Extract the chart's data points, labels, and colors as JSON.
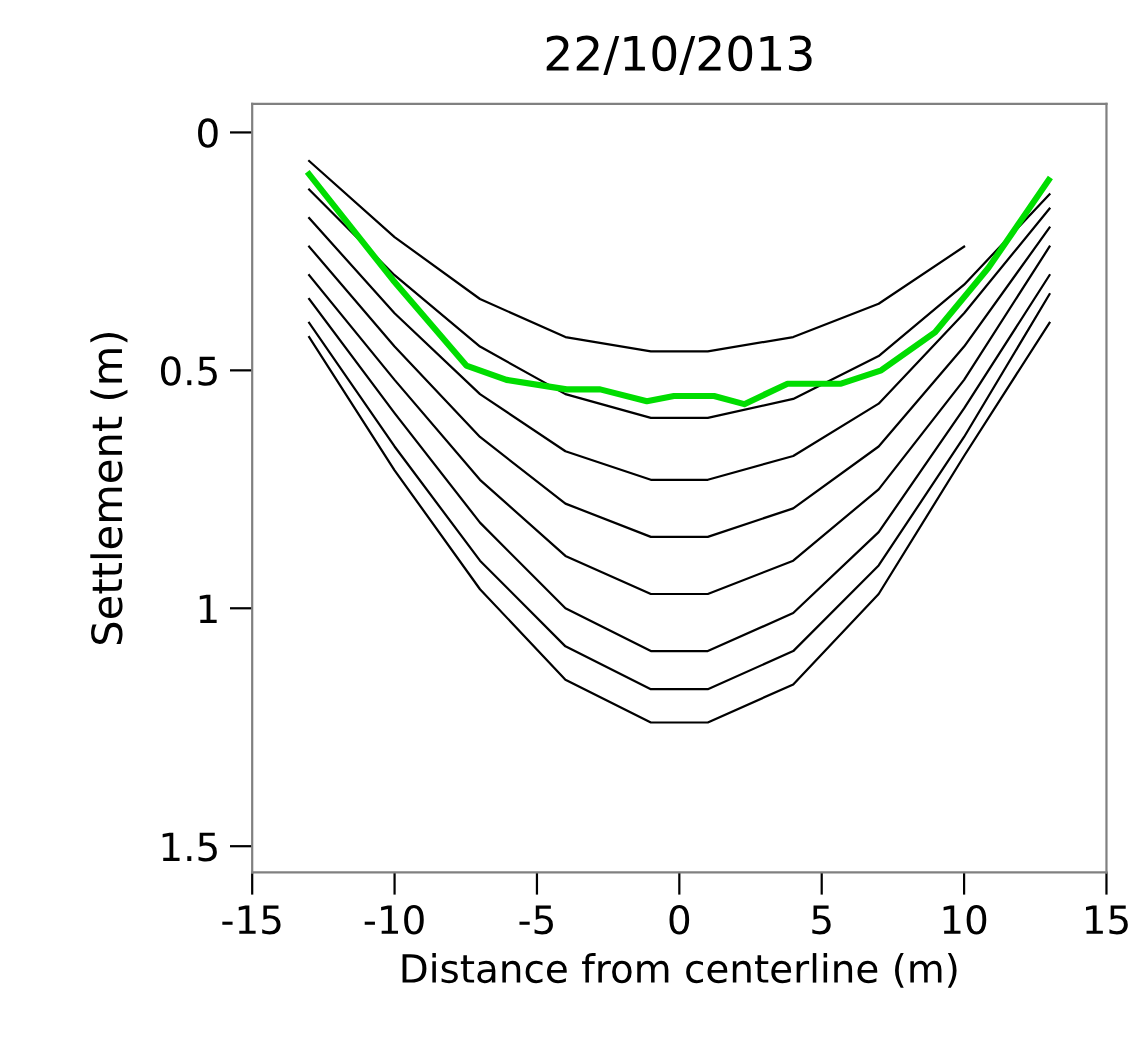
{
  "chart_data": {
    "type": "line",
    "title": "22/10/2013",
    "xlabel": "Distance from centerline (m)",
    "ylabel": "Settlement (m)",
    "xlim": [
      -15,
      15
    ],
    "xticks": [
      -15,
      -10,
      -5,
      0,
      5,
      10,
      15
    ],
    "ylim": [
      1.555,
      -0.06
    ],
    "yticks": [
      0,
      0.5,
      1,
      1.5
    ],
    "x": [
      -13,
      -10,
      -7,
      -4,
      -1,
      1,
      4,
      7,
      10,
      13
    ],
    "grid": false,
    "marker": "none",
    "line_style": "solid",
    "series": [
      {
        "color": "#000000",
        "values": [
          0.06,
          0.22,
          0.35,
          0.43,
          0.46,
          0.46,
          0.43,
          0.36,
          0.24,
          null
        ]
      },
      {
        "color": "#000000",
        "values": [
          0.12,
          0.3,
          0.45,
          0.55,
          0.6,
          0.6,
          0.56,
          0.47,
          0.32,
          0.13
        ]
      },
      {
        "color": "#000000",
        "values": [
          0.18,
          0.38,
          0.55,
          0.67,
          0.73,
          0.73,
          0.68,
          0.57,
          0.38,
          0.16
        ]
      },
      {
        "color": "#000000",
        "values": [
          0.24,
          0.45,
          0.64,
          0.78,
          0.85,
          0.85,
          0.79,
          0.66,
          0.45,
          0.2
        ]
      },
      {
        "color": "#000000",
        "values": [
          0.3,
          0.52,
          0.73,
          0.89,
          0.97,
          0.97,
          0.9,
          0.75,
          0.52,
          0.24
        ]
      },
      {
        "color": "#000000",
        "values": [
          0.35,
          0.59,
          0.82,
          1.0,
          1.09,
          1.09,
          1.01,
          0.84,
          0.58,
          0.3
        ]
      },
      {
        "color": "#000000",
        "values": [
          0.4,
          0.66,
          0.9,
          1.08,
          1.17,
          1.17,
          1.09,
          0.91,
          0.64,
          0.34
        ]
      },
      {
        "color": "#000000",
        "values": [
          0.43,
          0.71,
          0.96,
          1.15,
          1.24,
          1.24,
          1.16,
          0.97,
          0.68,
          0.4
        ]
      },
      {
        "color": "#00dd00",
        "x": [
          -13,
          -10.06,
          -7.48,
          -6.07,
          -3.96,
          -2.78,
          -1.14,
          -0.19,
          1.22,
          2.28,
          3.8,
          5.68,
          7.09,
          8.98,
          10.85,
          12.97
        ],
        "values": [
          0.088,
          0.31,
          0.49,
          0.52,
          0.54,
          0.54,
          0.565,
          0.554,
          0.554,
          0.571,
          0.528,
          0.528,
          0.5,
          0.42,
          0.285,
          0.1
        ]
      }
    ]
  }
}
